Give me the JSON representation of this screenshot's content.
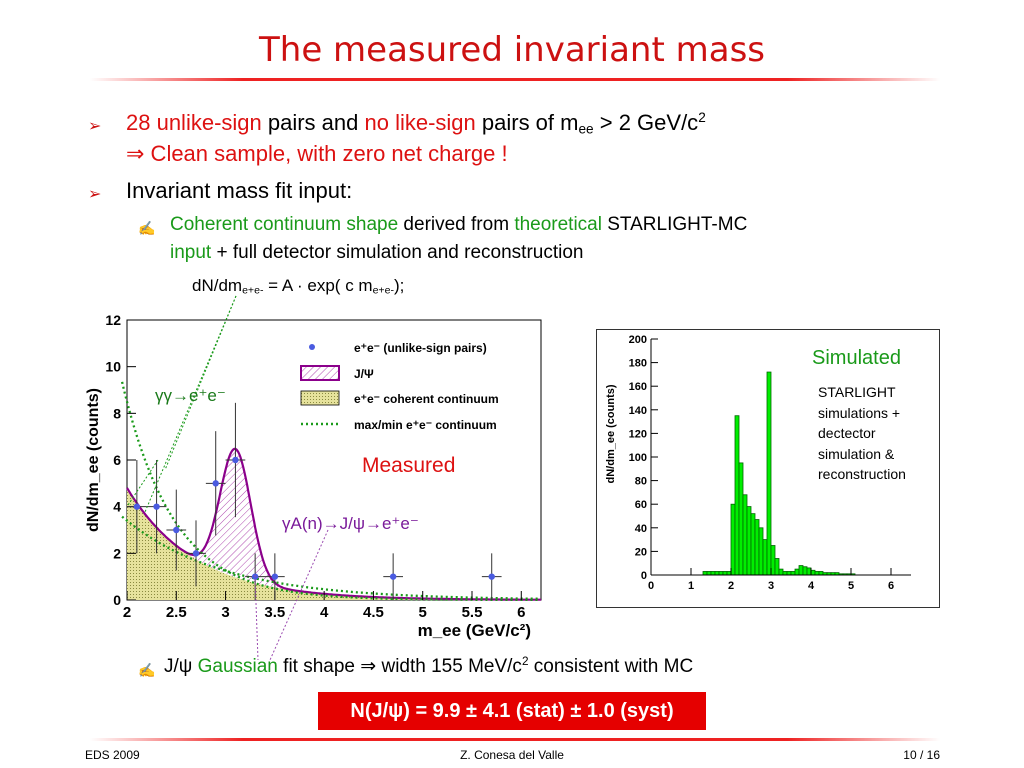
{
  "slide": {
    "title": "The measured invariant mass",
    "bullets": {
      "b1_l1_p1": "28 unlike-sign",
      "b1_l1_p2": " pairs and ",
      "b1_l1_p3": "no like-sign",
      "b1_l1_p4": " pairs of m",
      "b1_l1_sub": "ee",
      "b1_l1_p5": " > 2 GeV/c",
      "b1_l1_sup": "2",
      "b1_l2_arrow": "⇒",
      "b1_l2": " Clean sample, with zero net charge !",
      "b2": "Invariant mass fit input:",
      "b3_l1_p1": "Coherent continuum shape",
      "b3_l1_p2": " derived from ",
      "b3_l1_p3": "theoretical",
      "b3_l1_p4": " STARLIGHT-MC",
      "b3_l2_p1": "input",
      "b3_l2_p2": " + full detector simulation and reconstruction",
      "formula_p1": "dN/dm",
      "formula_sub1": "e+e-",
      "formula_p2": " = A · exp( c m",
      "formula_sub2": "e+e-",
      "formula_p3": ");",
      "b4_p1": "J/ψ ",
      "b4_p2": "Gaussian",
      "b4_p3": " fit shape ⇒ width 155 MeV/c",
      "b4_sup": "2",
      "b4_p4": " consistent with MC"
    },
    "result_badge": "N(J/ψ) = 9.9 ± 4.1 (stat) ± 1.0 (syst)",
    "footer": {
      "left": "EDS 2009",
      "center": "Z. Conesa del Valle",
      "right": "10 / 16"
    },
    "annotations": {
      "gamma_gamma": "γγ→e⁺e⁻",
      "gamma_a": "γA(n)→J/ψ→e⁺e⁻",
      "measured": "Measured",
      "simulated": "Simulated",
      "starlight_note": [
        "STARLIGHT",
        "simulations +",
        "dectector",
        "simulation &",
        "reconstruction"
      ]
    },
    "colors": {
      "title": "#cc1111",
      "accent_red": "#dd1111",
      "accent_green": "#1a9a1a",
      "badge": "#e50000",
      "hist_green": "#00ee00"
    }
  },
  "chart_data": [
    {
      "type": "scatter",
      "title": "",
      "xlabel": "m_ee (GeV/c²)",
      "ylabel": "dN/dm_ee (counts)",
      "xlim": [
        2,
        6.2
      ],
      "ylim": [
        0,
        12
      ],
      "x_ticks": [
        "2",
        "2.5",
        "3",
        "3.5",
        "4",
        "4.5",
        "5",
        "5.5",
        "6"
      ],
      "y_ticks": [
        "0",
        "2",
        "4",
        "6",
        "8",
        "10",
        "12"
      ],
      "legend": [
        "e⁺e⁻ (unlike-sign pairs)",
        "J/Ψ",
        "e⁺e⁻ coherent continuum",
        "max/min e⁺e⁻ continuum"
      ],
      "legend_position": "top-right",
      "series": [
        {
          "name": "e⁺e⁻ (unlike-sign pairs)",
          "x": [
            2.1,
            2.3,
            2.5,
            2.7,
            2.9,
            3.1,
            3.3,
            3.5,
            4.7,
            5.7
          ],
          "y": [
            4,
            4,
            3,
            2,
            5,
            6,
            1,
            1,
            1,
            1
          ]
        }
      ],
      "fit_model": {
        "continuum_A": 4.8,
        "continuum_c_per_GeV": 1.45,
        "jpsi_amplitude": 5.5,
        "jpsi_mean": 3.1,
        "jpsi_width": 0.155
      }
    },
    {
      "type": "bar",
      "title": "",
      "ylabel": "dN/dm_ee (counts)",
      "xlim": [
        0,
        6.5
      ],
      "ylim": [
        0,
        200
      ],
      "x_ticks": [
        "0",
        "1",
        "2",
        "3",
        "4",
        "5",
        "6"
      ],
      "y_ticks": [
        "0",
        "20",
        "40",
        "60",
        "80",
        "100",
        "120",
        "140",
        "160",
        "180",
        "200"
      ],
      "bin_width": 0.1,
      "x": [
        1.3,
        1.4,
        1.5,
        1.6,
        1.7,
        1.8,
        1.9,
        2.0,
        2.1,
        2.2,
        2.3,
        2.4,
        2.5,
        2.6,
        2.7,
        2.8,
        2.9,
        3.0,
        3.1,
        3.2,
        3.3,
        3.4,
        3.5,
        3.6,
        3.7,
        3.8,
        3.9,
        4.0,
        4.1,
        4.2,
        4.3,
        4.4,
        4.5,
        4.6,
        4.7,
        4.8,
        4.9,
        5.0
      ],
      "values": [
        3,
        3,
        3,
        3,
        3,
        3,
        3,
        60,
        135,
        95,
        68,
        58,
        52,
        47,
        40,
        30,
        172,
        25,
        14,
        5,
        3,
        3,
        3,
        5,
        8,
        7,
        6,
        4,
        3,
        3,
        2,
        2,
        2,
        2,
        1,
        1,
        1,
        1
      ]
    }
  ]
}
